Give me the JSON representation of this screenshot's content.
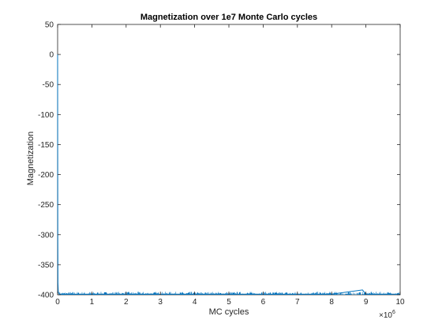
{
  "chart_data": {
    "type": "line",
    "title": "Magnetization over 1e7 Monte Carlo cycles",
    "xlabel": "MC cycles",
    "ylabel": "Magnetization",
    "xlim": [
      0,
      10000000
    ],
    "ylim": [
      -400,
      50
    ],
    "x_ticks": [
      0,
      1,
      2,
      3,
      4,
      5,
      6,
      7,
      8,
      9,
      10
    ],
    "x_tick_labels": [
      "0",
      "1",
      "2",
      "3",
      "4",
      "5",
      "6",
      "7",
      "8",
      "9",
      "10"
    ],
    "x_exponent_base": "×10",
    "x_exponent": "6",
    "y_ticks": [
      50,
      0,
      -50,
      -100,
      -150,
      -200,
      -250,
      -300,
      -350,
      -400
    ],
    "y_tick_labels": [
      "50",
      "0",
      "-50",
      "-100",
      "-150",
      "-200",
      "-250",
      "-300",
      "-350",
      "-400"
    ],
    "grid": false,
    "box": true,
    "series": [
      {
        "color": "#0072BD",
        "x": [
          0,
          2000,
          5000,
          10000,
          20000,
          50000,
          100000,
          1000000,
          2000000,
          3000000,
          4000000,
          5000000,
          6000000,
          7000000,
          8000000,
          8900000,
          9000000,
          10000000
        ],
        "values": [
          0,
          -150,
          -300,
          -380,
          -396,
          -399,
          -399,
          -399,
          -399,
          -399,
          -399,
          -399,
          -399,
          -399,
          -399,
          -392,
          -399,
          -399
        ],
        "noise_min": -400,
        "noise_max": -395
      }
    ]
  }
}
